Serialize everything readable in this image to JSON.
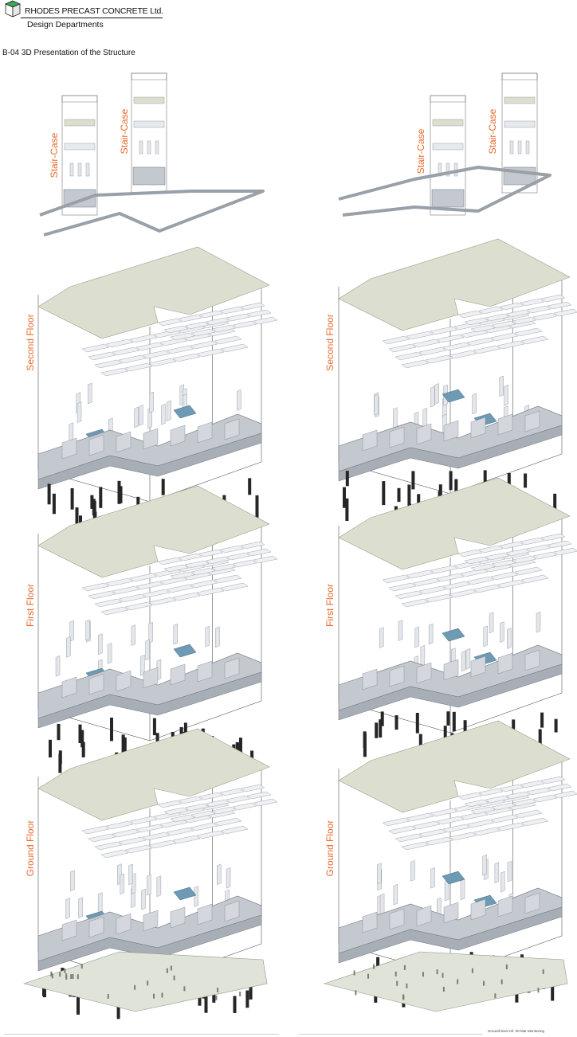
{
  "header": {
    "company": "RHODES PRECAST CONCRETE Ltd.",
    "department": "Design Departments",
    "sheet_title": "B-04 3D Presentation of the Structure"
  },
  "labels": {
    "staircase": "Stair-Case",
    "second_floor": "Second Floor",
    "first_floor": "First Floor",
    "ground_floor": "Ground Floor"
  },
  "footer": {
    "note": "Ground-level ref. 00 Mar Monitoring"
  },
  "colors": {
    "accent_label": "#e8692c",
    "slab": "#dcdfcf",
    "wall": "#c4c8cf",
    "stair": "#6e9ab4",
    "column": "#262626",
    "foundation": "#dfe3d8"
  }
}
